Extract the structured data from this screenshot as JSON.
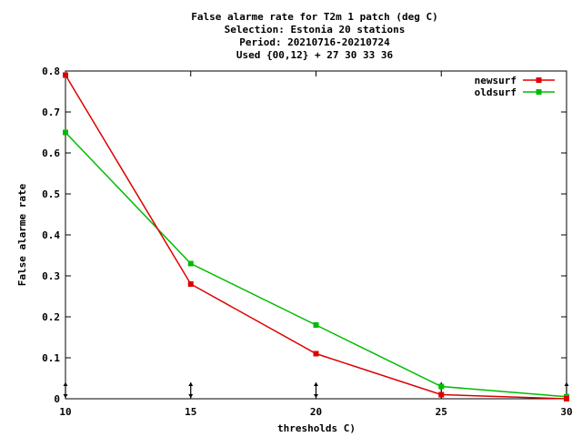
{
  "chart_data": {
    "type": "line",
    "title_lines": [
      "False alarme rate  for T2m 1 patch (deg C)",
      "Selection: Estonia     20 stations",
      "Period: 20210716-20210724",
      "Used {00,12} + 27 30 33 36"
    ],
    "xlabel": "thresholds C)",
    "ylabel": "False alarme rate",
    "x": [
      10,
      15,
      20,
      25,
      30
    ],
    "xlim": [
      10,
      30
    ],
    "ylim": [
      0,
      0.8
    ],
    "x_ticks": [
      "10",
      "15",
      "20",
      "25",
      "30"
    ],
    "y_ticks": [
      "0",
      "0.1",
      "0.2",
      "0.3",
      "0.4",
      "0.5",
      "0.6",
      "0.7",
      "0.8"
    ],
    "legend_position": "top-right",
    "grid": false,
    "series": [
      {
        "name": "newsurf",
        "color": "#dd0000",
        "values": [
          0.79,
          0.28,
          0.11,
          0.01,
          0.0
        ]
      },
      {
        "name": "oldsurf",
        "color": "#00bb00",
        "values": [
          0.65,
          0.33,
          0.18,
          0.03,
          0.005
        ]
      }
    ]
  }
}
